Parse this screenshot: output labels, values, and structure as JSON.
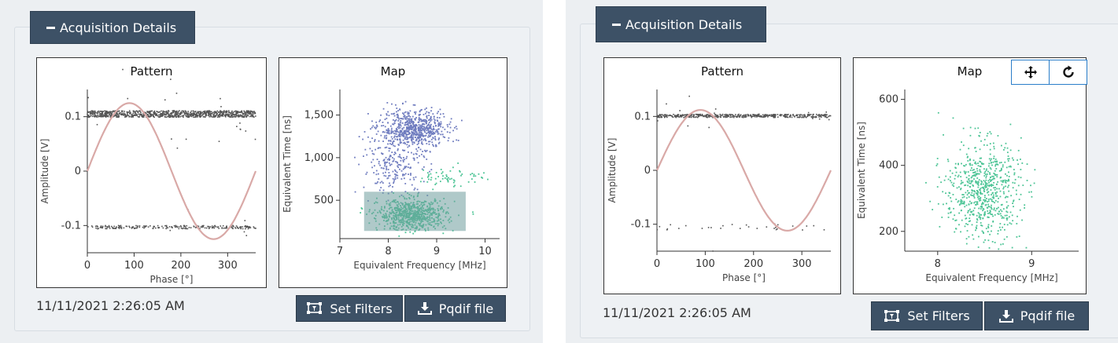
{
  "panels": [
    {
      "header": {
        "label": "Acquisition Details"
      },
      "timestamp": "11/11/2021 2:26:05 AM",
      "buttons": {
        "set_filters": "Set Filters",
        "pqdif": "Pqdif file"
      },
      "pattern": {
        "title": "Pattern",
        "xlabel": "Phase [°]",
        "ylabel": "Amplitude [V]",
        "xticks": [
          "0",
          "100",
          "200",
          "300"
        ],
        "yticks": [
          "0.1",
          "0",
          "-0.1"
        ]
      },
      "map": {
        "title": "Map",
        "xlabel": "Equivalent Frequency [MHz]",
        "ylabel": "Equivalent Time [ns]",
        "xticks": [
          "7",
          "8",
          "9",
          "10"
        ],
        "yticks": [
          "1,500",
          "1,000",
          "500"
        ]
      }
    },
    {
      "header": {
        "label": "Acquisition Details"
      },
      "timestamp": "11/11/2021 2:26:05 AM",
      "buttons": {
        "set_filters": "Set Filters",
        "pqdif": "Pqdif file"
      },
      "pattern": {
        "title": "Pattern",
        "xlabel": "Phase [°]",
        "ylabel": "Amplitude [V]",
        "xticks": [
          "0",
          "100",
          "200",
          "300"
        ],
        "yticks": [
          "0.1",
          "0",
          "-0.1"
        ]
      },
      "map": {
        "title": "Map",
        "xlabel": "Equivalent Frequency [MHz]",
        "ylabel": "Equivalent Time [ns]",
        "xticks": [
          "8",
          "9"
        ],
        "yticks": [
          "600",
          "400",
          "200"
        ]
      },
      "map_tools": [
        "pan-icon",
        "reset-icon"
      ]
    }
  ],
  "chart_data": [
    {
      "type": "scatter",
      "panel": 0,
      "chart": "pattern",
      "title": "Pattern",
      "xlabel": "Phase [°]",
      "ylabel": "Amplitude [V]",
      "xlim": [
        0,
        360
      ],
      "ylim": [
        -0.15,
        0.15
      ],
      "reference_sine_amplitude": 0.125,
      "series": [
        {
          "color": "#555555",
          "band_center": 0.105,
          "band_spread": 0.006,
          "count": 900
        },
        {
          "color": "#555555",
          "band_center": -0.103,
          "band_spread": 0.003,
          "count": 220
        }
      ],
      "sine_color": "#d9a9a7"
    },
    {
      "type": "scatter",
      "panel": 0,
      "chart": "map",
      "title": "Map",
      "xlabel": "Equivalent Frequency [MHz]",
      "ylabel": "Equivalent Time [ns]",
      "xlim": [
        7,
        10.3
      ],
      "ylim": [
        50,
        1800
      ],
      "series": [
        {
          "color": "#6f7cbf",
          "clusters": [
            {
              "x": 8.5,
              "y": 1330,
              "sx": 0.35,
              "sy": 110,
              "count": 700
            },
            {
              "x": 8.15,
              "y": 880,
              "sx": 0.35,
              "sy": 160,
              "count": 200
            }
          ]
        },
        {
          "color": "#4cc495",
          "clusters": [
            {
              "x": 8.5,
              "y": 330,
              "sx": 0.35,
              "sy": 90,
              "count": 700
            },
            {
              "x": 9.3,
              "y": 780,
              "sx": 0.35,
              "sy": 60,
              "count": 60
            }
          ]
        }
      ],
      "selection": {
        "x": [
          7.5,
          9.6
        ],
        "y": [
          140,
          600
        ],
        "color": "#6d9c9c"
      }
    },
    {
      "type": "scatter",
      "panel": 1,
      "chart": "pattern",
      "title": "Pattern",
      "xlabel": "Phase [°]",
      "ylabel": "Amplitude [V]",
      "xlim": [
        0,
        360
      ],
      "ylim": [
        -0.15,
        0.15
      ],
      "reference_sine_amplitude": 0.112,
      "series": [
        {
          "color": "#555555",
          "band_center": 0.101,
          "band_spread": 0.003,
          "count": 450
        },
        {
          "color": "#555555",
          "band_center": -0.105,
          "band_spread": 0.006,
          "count": 30
        }
      ],
      "sine_color": "#d9a9a7"
    },
    {
      "type": "scatter",
      "panel": 1,
      "chart": "map",
      "title": "Map",
      "xlabel": "Equivalent Frequency [MHz]",
      "ylabel": "Equivalent Time [ns]",
      "xlim": [
        7.65,
        9.5
      ],
      "ylim": [
        140,
        630
      ],
      "series": [
        {
          "color": "#4cc495",
          "clusters": [
            {
              "x": 8.48,
              "y": 320,
              "sx": 0.2,
              "sy": 75,
              "count": 700
            }
          ]
        }
      ]
    }
  ]
}
